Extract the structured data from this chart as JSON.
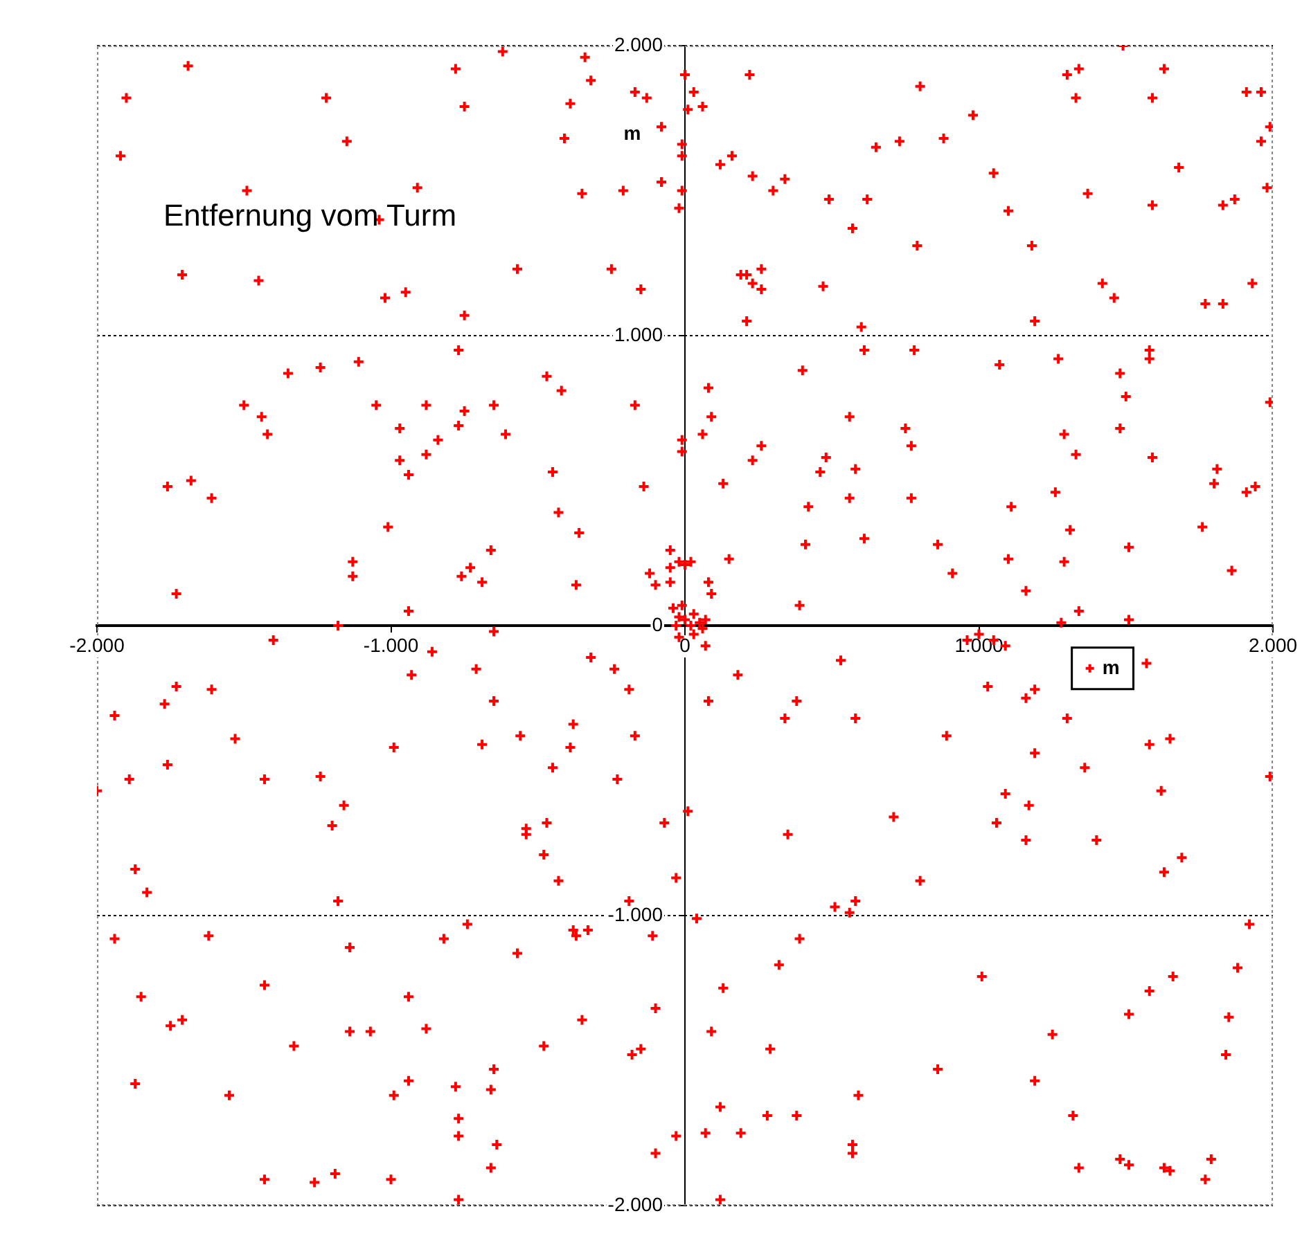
{
  "chart_data": {
    "type": "scatter",
    "ylabel": "m",
    "annotations": [
      "Entfernung vom Turm"
    ],
    "xlim": [
      -2000,
      2000
    ],
    "ylim": [
      -2000,
      2000
    ],
    "xticks": [
      {
        "value": -2000,
        "label": "-2.000"
      },
      {
        "value": -1000,
        "label": "-1.000"
      },
      0,
      {
        "value": 1000,
        "label": "1.000"
      },
      {
        "value": 2000,
        "label": "2.000"
      }
    ],
    "yticks": [
      {
        "value": -2000,
        "label": "-2.000"
      },
      {
        "value": -1000,
        "label": "-1.000"
      },
      0,
      {
        "value": 1000,
        "label": "1.000"
      },
      {
        "value": 2000,
        "label": "2.000"
      }
    ],
    "grid": "y",
    "legend": "right",
    "marker": "cross",
    "series": [
      {
        "name": "m",
        "color": "#ff0000",
        "x": [
          -1690,
          -1900,
          -1920,
          -1220,
          -1150,
          -1490,
          -910,
          -780,
          -750,
          -1040,
          -1710,
          -1450,
          -1020,
          -950,
          -750,
          -770,
          -1240,
          -1110,
          -1350,
          -1500,
          -1050,
          -880,
          -650,
          -1440,
          -1420,
          -750,
          -770,
          -970,
          -840,
          -880,
          -970,
          -940,
          -1760,
          -1680,
          -1610,
          -1010,
          -1130,
          -1130,
          -660,
          -730,
          -760,
          -690,
          -1730,
          -940,
          -1180,
          -620,
          -340,
          -320,
          -390,
          -170,
          -130,
          -80,
          -410,
          -350,
          -210,
          -80,
          -10,
          -20,
          0,
          -10,
          -10,
          -570,
          -250,
          -150,
          -470,
          -420,
          -170,
          -610,
          -450,
          -140,
          -430,
          -360,
          -10,
          -10,
          -50,
          -50,
          -120,
          -100,
          -50,
          -370,
          -20,
          20,
          0,
          -40,
          -20,
          0,
          30,
          50,
          70,
          -30,
          20,
          -10,
          30,
          60,
          -20,
          220,
          30,
          10,
          60,
          650,
          120,
          160,
          230,
          300,
          340,
          490,
          620,
          570,
          190,
          210,
          230,
          260,
          260,
          470,
          210,
          600,
          610,
          400,
          80,
          90,
          60,
          560,
          260,
          230,
          480,
          460,
          580,
          130,
          560,
          420,
          410,
          610,
          150,
          80,
          90,
          390,
          1490,
          1300,
          1340,
          1630,
          800,
          1330,
          1590,
          1910,
          1960,
          980,
          730,
          880,
          1990,
          1960,
          1050,
          1680,
          1370,
          1980,
          1100,
          1590,
          1830,
          1870,
          790,
          1180,
          1420,
          1460,
          1770,
          1830,
          1930,
          1190,
          780,
          1070,
          1270,
          1580,
          1580,
          1480,
          1500,
          1990,
          750,
          770,
          1290,
          1330,
          1480,
          1590,
          1810,
          1800,
          1910,
          1940,
          770,
          1260,
          1110,
          1310,
          1760,
          860,
          1100,
          1290,
          1510,
          910,
          1860,
          1160,
          1340,
          1510,
          1280,
          -1400,
          -860,
          -710,
          -930,
          -650,
          -650,
          -1730,
          -1610,
          -1770,
          -1940,
          -1530,
          -990,
          -690,
          -1760,
          -1890,
          -1430,
          -1240,
          -2000,
          -1160,
          -1200,
          -1870,
          -1830,
          -1180,
          -1940,
          -1620,
          -1140,
          -820,
          -740,
          -1430,
          -1850,
          -940,
          -1750,
          -1710,
          -1140,
          -1070,
          -880,
          -1330,
          -1870,
          -1550,
          -990,
          -940,
          -780,
          -650,
          -660,
          -770,
          -770,
          -640,
          -660,
          -1430,
          -1260,
          -1190,
          -1000,
          -770,
          -320,
          -240,
          -190,
          -560,
          -380,
          -390,
          -170,
          -450,
          -230,
          -470,
          -540,
          -540,
          -480,
          -430,
          -70,
          10,
          -30,
          -190,
          -380,
          -370,
          -330,
          -110,
          -570,
          40,
          -350,
          -100,
          -480,
          -180,
          -150,
          -100,
          -30,
          120,
          70,
          180,
          80,
          530,
          380,
          340,
          580,
          350,
          510,
          580,
          560,
          390,
          320,
          130,
          90,
          290,
          590,
          120,
          70,
          190,
          280,
          380,
          570,
          570,
          960,
          1000,
          1050,
          1090,
          1030,
          1160,
          1190,
          1570,
          1300,
          890,
          1580,
          1650,
          1190,
          1360,
          1990,
          1090,
          1170,
          1620,
          710,
          1060,
          1160,
          1400,
          1690,
          1630,
          800,
          1920,
          1880,
          1010,
          1660,
          1580,
          1510,
          1850,
          1250,
          1840,
          860,
          1190,
          1320,
          1340,
          1480,
          1510,
          1630,
          1650,
          1790,
          1770
        ],
        "values": [
          1930,
          1820,
          1620,
          1820,
          1670,
          1500,
          1510,
          1920,
          1790,
          1400,
          1210,
          1190,
          1130,
          1150,
          1070,
          950,
          890,
          910,
          870,
          760,
          760,
          760,
          760,
          720,
          660,
          740,
          690,
          680,
          640,
          590,
          570,
          520,
          480,
          500,
          440,
          340,
          220,
          170,
          260,
          200,
          170,
          150,
          110,
          50,
          0,
          1980,
          1960,
          1880,
          1800,
          1840,
          1820,
          1720,
          1680,
          1490,
          1500,
          1530,
          1500,
          1440,
          1900,
          1660,
          1620,
          1230,
          1230,
          1160,
          860,
          810,
          760,
          660,
          530,
          480,
          390,
          320,
          640,
          600,
          260,
          200,
          180,
          140,
          150,
          140,
          220,
          220,
          210,
          60,
          30,
          20,
          40,
          10,
          20,
          0,
          0,
          70,
          -30,
          -10,
          -40,
          1900,
          1840,
          1780,
          1790,
          1650,
          1590,
          1620,
          1550,
          1500,
          1540,
          1470,
          1470,
          1370,
          1210,
          1210,
          1180,
          1230,
          1160,
          1170,
          1050,
          1030,
          950,
          880,
          820,
          720,
          660,
          720,
          620,
          570,
          580,
          530,
          540,
          490,
          440,
          410,
          280,
          300,
          230,
          150,
          110,
          70,
          2000,
          1900,
          1920,
          1920,
          1860,
          1820,
          1820,
          1840,
          1840,
          1760,
          1670,
          1680,
          1720,
          1670,
          1560,
          1580,
          1490,
          1510,
          1430,
          1450,
          1450,
          1470,
          1310,
          1310,
          1180,
          1130,
          1110,
          1110,
          1180,
          1050,
          950,
          900,
          920,
          950,
          920,
          870,
          790,
          770,
          680,
          620,
          660,
          590,
          680,
          580,
          540,
          490,
          460,
          480,
          440,
          460,
          410,
          330,
          340,
          280,
          230,
          220,
          270,
          180,
          190,
          120,
          50,
          20,
          10,
          -50,
          -90,
          -150,
          -170,
          -20,
          -260,
          -210,
          -220,
          -270,
          -310,
          -390,
          -420,
          -410,
          -480,
          -530,
          -530,
          -520,
          -570,
          -620,
          -690,
          -840,
          -920,
          -950,
          -1080,
          -1070,
          -1110,
          -1080,
          -1030,
          -1240,
          -1280,
          -1280,
          -1380,
          -1360,
          -1400,
          -1400,
          -1390,
          -1450,
          -1580,
          -1620,
          -1620,
          -1570,
          -1590,
          -1530,
          -1600,
          -1700,
          -1760,
          -1790,
          -1870,
          -1910,
          -1920,
          -1890,
          -1910,
          -1980,
          -110,
          -150,
          -220,
          -380,
          -340,
          -420,
          -380,
          -490,
          -530,
          -680,
          -700,
          -720,
          -790,
          -880,
          -680,
          -640,
          -870,
          -950,
          -1050,
          -1070,
          -1050,
          -1070,
          -1130,
          -1010,
          -1360,
          -1320,
          -1450,
          -1480,
          -1460,
          -1820,
          -1760,
          -1980,
          -70,
          -170,
          -260,
          -120,
          -260,
          -320,
          -320,
          -720,
          -970,
          -950,
          -990,
          -1080,
          -1170,
          -1250,
          -1400,
          -1460,
          -1620,
          -1660,
          -1750,
          -1750,
          -1690,
          -1690,
          -1790,
          -1820,
          -50,
          -30,
          -50,
          -70,
          -210,
          -250,
          -220,
          -130,
          -320,
          -380,
          -410,
          -390,
          -440,
          -490,
          -520,
          -580,
          -620,
          -570,
          -660,
          -680,
          -740,
          -740,
          -800,
          -850,
          -880,
          -1030,
          -1180,
          -1210,
          -1210,
          -1260,
          -1340,
          -1350,
          -1410,
          -1480,
          -1530,
          -1570,
          -1690,
          -1870,
          -1840,
          -1860,
          -1870,
          -1880,
          -1840,
          -1910
        ]
      }
    ]
  }
}
